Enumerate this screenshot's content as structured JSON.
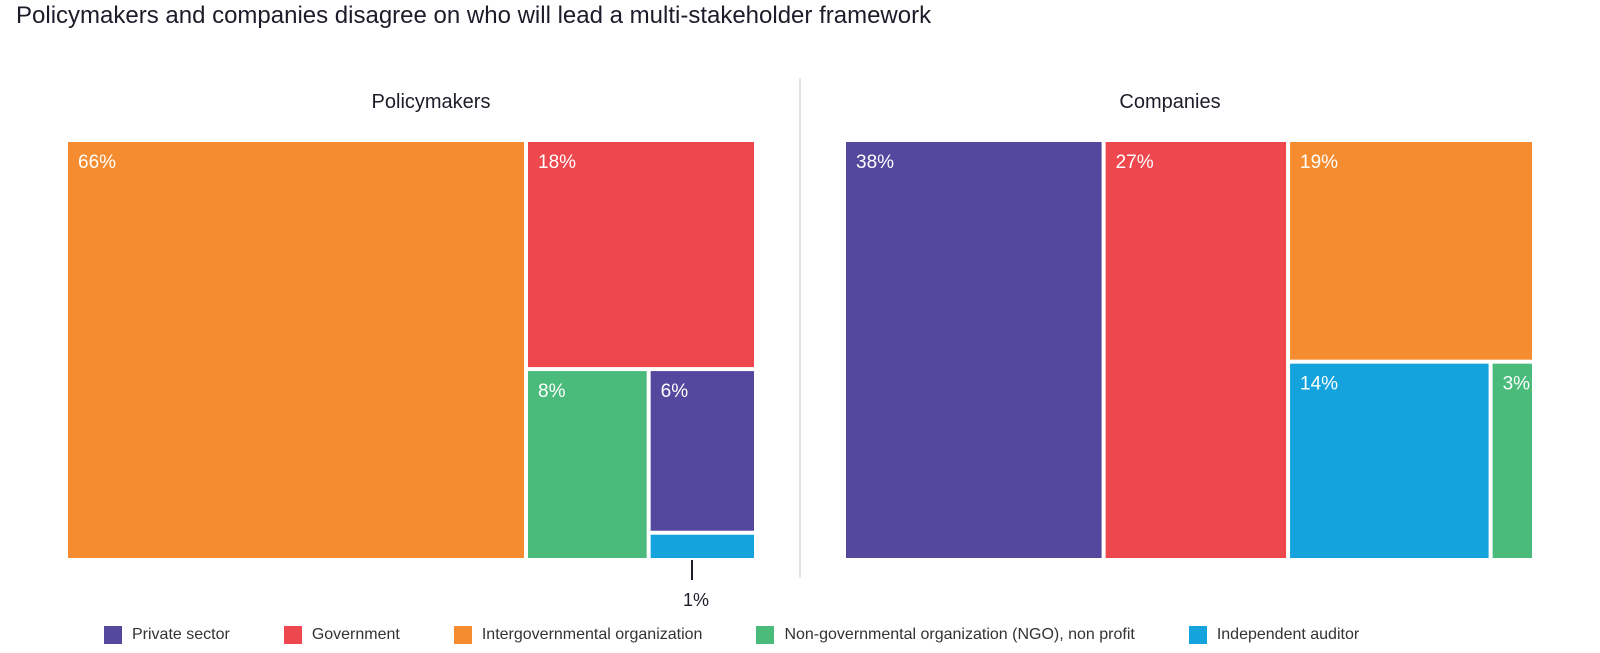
{
  "title": "Policymakers and companies disagree on who will lead a multi-stakeholder framework",
  "colors": {
    "Private sector": "#53489d",
    "Government": "#ef474e",
    "Intergovernmental organization": "#f58c2f",
    "Non-governmental organization (NGO), non profit": "#4abb7a",
    "Independent auditor": "#14a3dc"
  },
  "chart_data": [
    {
      "type": "treemap",
      "title": "Policymakers",
      "data": [
        {
          "category": "Intergovernmental organization",
          "value": 66,
          "label": "66%"
        },
        {
          "category": "Government",
          "value": 18,
          "label": "18%"
        },
        {
          "category": "Non-governmental organization (NGO), non profit",
          "value": 8,
          "label": "8%"
        },
        {
          "category": "Private sector",
          "value": 6,
          "label": "6%"
        },
        {
          "category": "Independent auditor",
          "value": 1,
          "label": "1%"
        }
      ]
    },
    {
      "type": "treemap",
      "title": "Companies",
      "data": [
        {
          "category": "Private sector",
          "value": 38,
          "label": "38%"
        },
        {
          "category": "Government",
          "value": 27,
          "label": "27%"
        },
        {
          "category": "Intergovernmental organization",
          "value": 19,
          "label": "19%"
        },
        {
          "category": "Independent auditor",
          "value": 14,
          "label": "14%"
        },
        {
          "category": "Non-governmental organization (NGO), non profit",
          "value": 3,
          "label": "3%"
        }
      ]
    }
  ],
  "legend": [
    "Private sector",
    "Government",
    "Intergovernmental organization",
    "Non-governmental organization (NGO), non profit",
    "Independent auditor"
  ]
}
